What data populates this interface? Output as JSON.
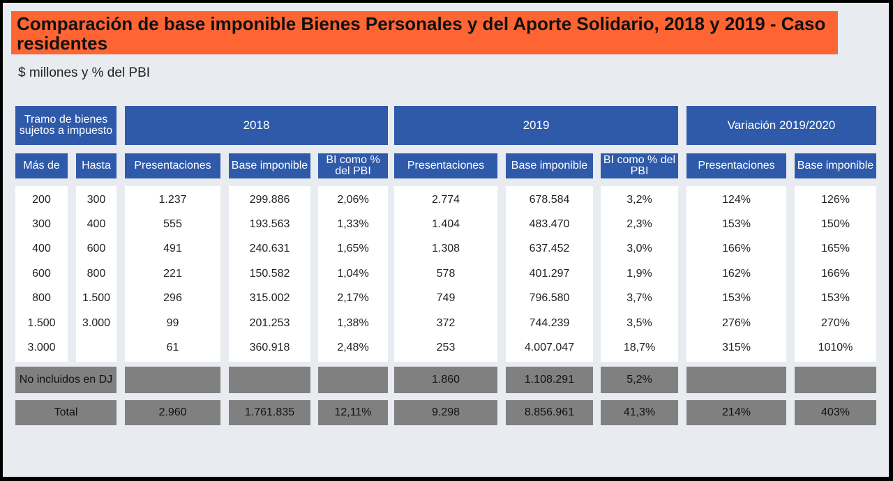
{
  "title": "Comparación de base imponible Bienes Personales y del Aporte Solidario, 2018 y 2019 - Caso residentes",
  "subtitle": "$ millones y % del PBI",
  "chart_data": {
    "type": "table",
    "groups": {
      "tramo": "Tramo de bienes sujetos a impuesto",
      "y2018": "2018",
      "y2019": "2019",
      "variacion": "Variación 2019/2020"
    },
    "columns": [
      "Más de",
      "Hasta",
      "Presentaciones",
      "Base imponible",
      "BI como % del PBI",
      "Presentaciones",
      "Base imponible",
      "BI como % del PBI",
      "Presentaciones",
      "Base imponible"
    ],
    "rows": [
      [
        "200",
        "300",
        "1.237",
        "299.886",
        "2,06%",
        "2.774",
        "678.584",
        "3,2%",
        "124%",
        "126%"
      ],
      [
        "300",
        "400",
        "555",
        "193.563",
        "1,33%",
        "1.404",
        "483.470",
        "2,3%",
        "153%",
        "150%"
      ],
      [
        "400",
        "600",
        "491",
        "240.631",
        "1,65%",
        "1.308",
        "637.452",
        "3,0%",
        "166%",
        "165%"
      ],
      [
        "600",
        "800",
        "221",
        "150.582",
        "1,04%",
        "578",
        "401.297",
        "1,9%",
        "162%",
        "166%"
      ],
      [
        "800",
        "1.500",
        "296",
        "315.002",
        "2,17%",
        "749",
        "796.580",
        "3,7%",
        "153%",
        "153%"
      ],
      [
        "1.500",
        "3.000",
        "99",
        "201.253",
        "1,38%",
        "372",
        "744.239",
        "3,5%",
        "276%",
        "270%"
      ],
      [
        "3.000",
        "",
        "61",
        "360.918",
        "2,48%",
        "253",
        "4.007.047",
        "18,7%",
        "315%",
        "1010%"
      ]
    ],
    "no_incluidos": {
      "label": "No incluidos en DJ",
      "values": [
        "",
        "",
        "",
        "1.860",
        "1.108.291",
        "5,2%",
        "",
        ""
      ]
    },
    "total": {
      "label": "Total",
      "values": [
        "2.960",
        "1.761.835",
        "12,11%",
        "9.298",
        "8.856.961",
        "41,3%",
        "214%",
        "403%"
      ]
    }
  },
  "colors": {
    "header": "#2f5aa9",
    "title_bar": "#ff6433",
    "summary_rows": "#808080",
    "body": "#ffffff",
    "background": "#e8ecf0"
  }
}
